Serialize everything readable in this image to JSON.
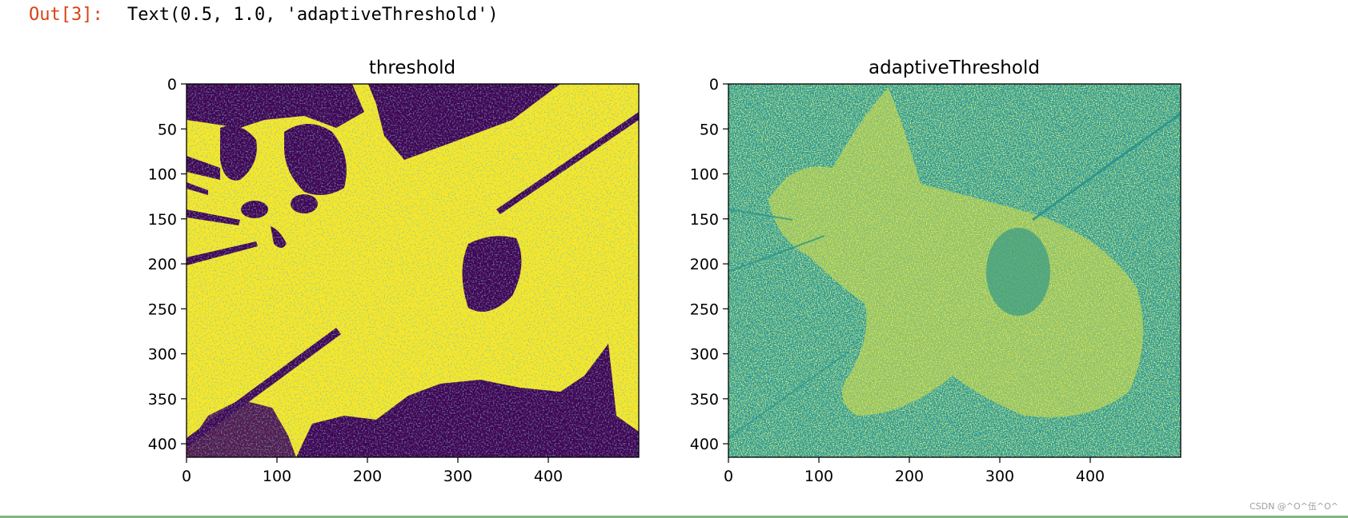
{
  "output": {
    "prompt": "Out[3]:",
    "text": "Text(0.5, 1.0, 'adaptiveThreshold')"
  },
  "colors": {
    "viridis_low": "#440154",
    "viridis_mid": "#21918c",
    "viridis_high": "#fde725",
    "prompt": "#d84315",
    "bottom_rule": "#7fb77e"
  },
  "chart_data": [
    {
      "type": "image",
      "title": "threshold",
      "colormap": "viridis",
      "values_shown": [
        "low (dark purple)",
        "high (yellow)"
      ],
      "xlim": [
        0,
        500
      ],
      "ylim": [
        415,
        0
      ],
      "xticks": [
        0,
        100,
        200,
        300,
        400
      ],
      "yticks": [
        0,
        50,
        100,
        150,
        200,
        250,
        300,
        350,
        400
      ],
      "xtick_labels": [
        "0",
        "100",
        "200",
        "300",
        "400"
      ],
      "ytick_labels": [
        "0",
        "50",
        "100",
        "150",
        "200",
        "250",
        "300",
        "350",
        "400"
      ]
    },
    {
      "type": "image",
      "title": "adaptiveThreshold",
      "colormap": "viridis",
      "values_shown": [
        "low (teal)",
        "high (yellow)"
      ],
      "xlim": [
        0,
        500
      ],
      "ylim": [
        415,
        0
      ],
      "xticks": [
        0,
        100,
        200,
        300,
        400
      ],
      "yticks": [
        0,
        50,
        100,
        150,
        200,
        250,
        300,
        350,
        400
      ],
      "xtick_labels": [
        "0",
        "100",
        "200",
        "300",
        "400"
      ],
      "ytick_labels": [
        "0",
        "50",
        "100",
        "150",
        "200",
        "250",
        "300",
        "350",
        "400"
      ]
    }
  ],
  "watermark": "CSDN @^O^伍^O^"
}
